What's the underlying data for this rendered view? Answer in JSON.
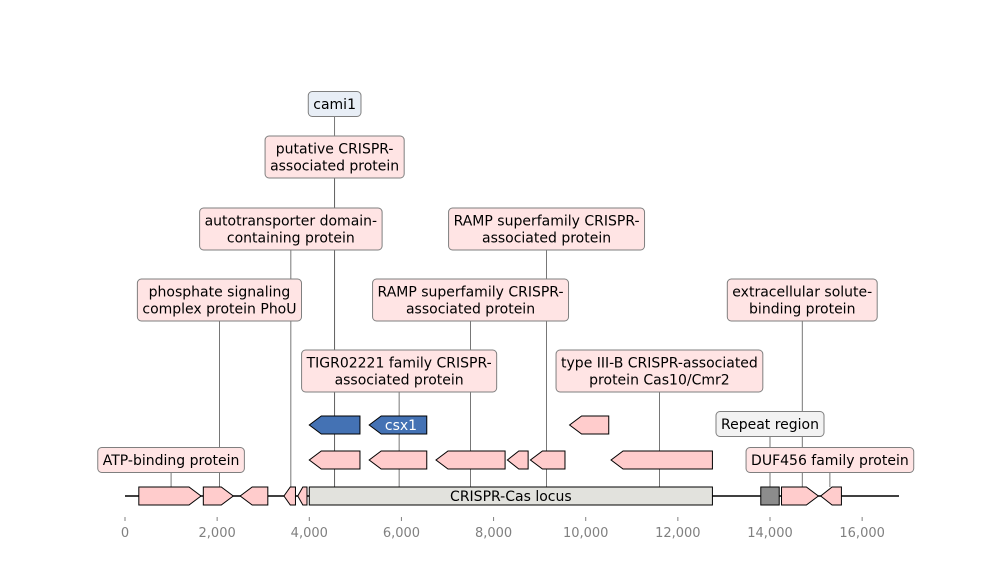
{
  "axis": {
    "min": 0,
    "max": 16800,
    "ticks": [
      {
        "value": 0,
        "label": "0"
      },
      {
        "value": 2000,
        "label": "2,000"
      },
      {
        "value": 4000,
        "label": "4,000"
      },
      {
        "value": 6000,
        "label": "6,000"
      },
      {
        "value": 8000,
        "label": "8,000"
      },
      {
        "value": 10000,
        "label": "10,000"
      },
      {
        "value": 12000,
        "label": "12,000"
      },
      {
        "value": 14000,
        "label": "14,000"
      },
      {
        "value": 16000,
        "label": "16,000"
      }
    ]
  },
  "colors": {
    "gene_fill": "#ffcccc",
    "highlight_fill": "#4472b4",
    "locus_fill": "#e2e2dd",
    "repeat_fill": "#8c8c8c",
    "label_box_pink": "#ffe4e4",
    "label_box_blue": "#e8eef6",
    "label_box_grey": "#f2f2f2",
    "tick_text": "#808080"
  },
  "locus": {
    "label": "CRISPR-Cas locus",
    "start": 4000,
    "end": 12750
  },
  "repeat_region": {
    "label": "Repeat region",
    "start": 13800,
    "end": 14200
  },
  "genes": [
    {
      "start": 300,
      "end": 1650,
      "strand": 1,
      "row": 0
    },
    {
      "start": 1700,
      "end": 2350,
      "strand": 1,
      "row": 0
    },
    {
      "start": 2500,
      "end": 3100,
      "strand": -1,
      "row": 0
    },
    {
      "start": 3450,
      "end": 3700,
      "strand": -1,
      "row": 0
    },
    {
      "start": 3750,
      "end": 3950,
      "strand": -1,
      "row": 0
    },
    {
      "start": 4000,
      "end": 5100,
      "strand": -1,
      "row": 1
    },
    {
      "start": 5300,
      "end": 6550,
      "strand": -1,
      "row": 1
    },
    {
      "start": 6750,
      "end": 8250,
      "strand": -1,
      "row": 1
    },
    {
      "start": 8300,
      "end": 8750,
      "strand": -1,
      "row": 1
    },
    {
      "start": 8800,
      "end": 9550,
      "strand": -1,
      "row": 1
    },
    {
      "start": 10550,
      "end": 12750,
      "strand": -1,
      "row": 1
    },
    {
      "start": 14250,
      "end": 15050,
      "strand": 1,
      "row": 0
    },
    {
      "start": 15100,
      "end": 15550,
      "strand": -1,
      "row": 0
    },
    {
      "start": 4000,
      "end": 5100,
      "strand": -1,
      "row": 2,
      "highlight": true
    },
    {
      "start": 5300,
      "end": 6550,
      "strand": -1,
      "row": 2,
      "highlight": true,
      "label": "csx1"
    },
    {
      "start": 9650,
      "end": 10500,
      "strand": -1,
      "row": 2
    }
  ],
  "annotations": [
    {
      "text": "cami1",
      "anchor": 4550,
      "center": 4550,
      "level": 6,
      "style": "blue"
    },
    {
      "text": "putative CRISPR-\nassociated protein",
      "anchor": 4550,
      "center": 4550,
      "level": 5,
      "style": "pink"
    },
    {
      "text": "autotransporter domain-\ncontaining protein",
      "anchor": 3600,
      "center": 3600,
      "level": 4,
      "style": "pink"
    },
    {
      "text": "RAMP superfamily CRISPR-\nassociated protein",
      "anchor": 9150,
      "center": 9150,
      "level": 4,
      "style": "pink"
    },
    {
      "text": "phosphate signaling\ncomplex protein PhoU",
      "anchor": 2050,
      "center": 2050,
      "level": 3,
      "style": "pink"
    },
    {
      "text": "RAMP superfamily CRISPR-\nassociated protein",
      "anchor": 7500,
      "center": 7500,
      "level": 3,
      "style": "pink"
    },
    {
      "text": "extracellular solute-\nbinding protein",
      "anchor": 14700,
      "center": 14700,
      "level": 3,
      "style": "pink"
    },
    {
      "text": "TIGR02221 family CRISPR-\nassociated protein",
      "anchor": 5950,
      "center": 5950,
      "level": 2,
      "style": "pink"
    },
    {
      "text": "type III-B CRISPR-associated\nprotein Cas10/Cmr2",
      "anchor": 11600,
      "center": 11600,
      "level": 2,
      "style": "pink"
    },
    {
      "text": "Repeat region",
      "anchor": 14000,
      "center": 14000,
      "level": 1,
      "style": "grey"
    },
    {
      "text": "ATP-binding protein",
      "anchor": 1000,
      "center": 1000,
      "level": 0,
      "style": "pink"
    },
    {
      "text": "DUF456 family protein",
      "anchor": 15300,
      "center": 15300,
      "level": 0,
      "style": "pink"
    }
  ]
}
